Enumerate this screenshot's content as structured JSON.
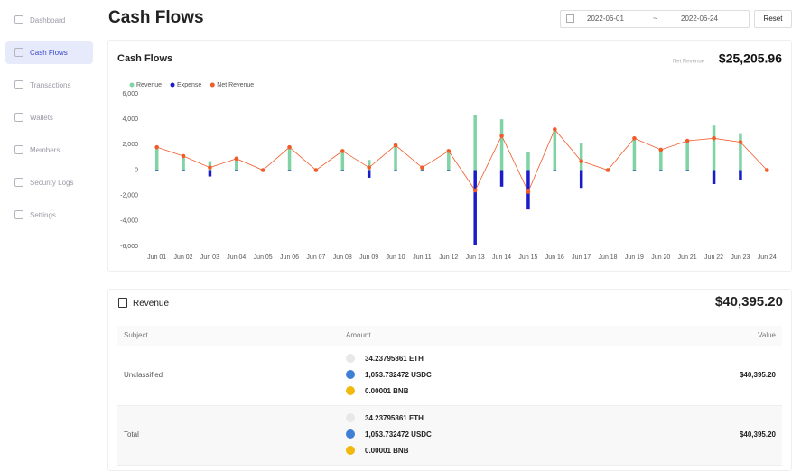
{
  "sidebar": {
    "items": [
      "Dashboard",
      "Cash Flows",
      "Transactions",
      "Wallets",
      "Members",
      "Security Logs",
      "Settings"
    ],
    "active": 1
  },
  "header": {
    "title": "Cash Flows",
    "date_from": "2022-06-01",
    "date_separator": "~",
    "date_to": "2022-06-24",
    "reset": "Reset"
  },
  "chart_data": {
    "type": "bar",
    "title": "Cash Flows",
    "summary_label": "Net Revenue",
    "summary_value": "$25,205.96",
    "categories": [
      "Jun 01",
      "Jun 02",
      "Jun 03",
      "Jun 04",
      "Jun 05",
      "Jun 06",
      "Jun 07",
      "Jun 08",
      "Jun 09",
      "Jun 10",
      "Jun 11",
      "Jun 12",
      "Jun 13",
      "Jun 14",
      "Jun 15",
      "Jun 16",
      "Jun 17",
      "Jun 18",
      "Jun 19",
      "Jun 20",
      "Jun 21",
      "Jun 22",
      "Jun 23",
      "Jun 24"
    ],
    "series": [
      {
        "name": "Revenue",
        "color": "#7fd3a5",
        "kind": "bar",
        "values": [
          1800,
          1100,
          700,
          900,
          0,
          1800,
          0,
          1500,
          800,
          2000,
          200,
          1600,
          4300,
          4000,
          1400,
          3300,
          2100,
          0,
          2600,
          1700,
          2300,
          3500,
          2900,
          0
        ]
      },
      {
        "name": "Expense",
        "color": "#1b1bc9",
        "kind": "bar",
        "values": [
          0,
          0,
          -500,
          0,
          0,
          0,
          0,
          0,
          -600,
          -100,
          -100,
          0,
          -5900,
          -1300,
          -3100,
          0,
          -1400,
          0,
          -100,
          0,
          0,
          -1100,
          -800,
          0
        ]
      },
      {
        "name": "Net Revenue",
        "color": "#f15b2a",
        "kind": "line",
        "values": [
          1800,
          1100,
          200,
          900,
          0,
          1800,
          0,
          1500,
          200,
          1950,
          200,
          1500,
          -1600,
          2700,
          -1700,
          3200,
          700,
          0,
          2500,
          1600,
          2300,
          2500,
          2200,
          0
        ]
      }
    ],
    "ylim": [
      -6000,
      6000
    ],
    "yticks": [
      {
        "value": -6000,
        "label": "-6,000"
      },
      {
        "value": -4000,
        "label": "-4,000"
      },
      {
        "value": -2000,
        "label": "-2,000"
      },
      0,
      {
        "value": 2000,
        "label": "2,000"
      },
      {
        "value": 4000,
        "label": "4,000"
      },
      {
        "value": 6000,
        "label": "6,000"
      }
    ]
  },
  "revenue": {
    "title": "Revenue",
    "total": "$40,395.20",
    "table": {
      "columns": [
        "Subject",
        "Amount",
        "Value"
      ],
      "rows": [
        {
          "subject": "Unclassified",
          "amounts": [
            "34.23795861 ETH",
            "1,053.732472 USDC",
            "0.00001 BNB"
          ],
          "value": "$40,395.20"
        },
        {
          "subject": "Total",
          "amounts": [
            "34.23795861 ETH",
            "1,053.732472 USDC",
            "0.00001 BNB"
          ],
          "value": "$40,395.20"
        }
      ]
    }
  }
}
